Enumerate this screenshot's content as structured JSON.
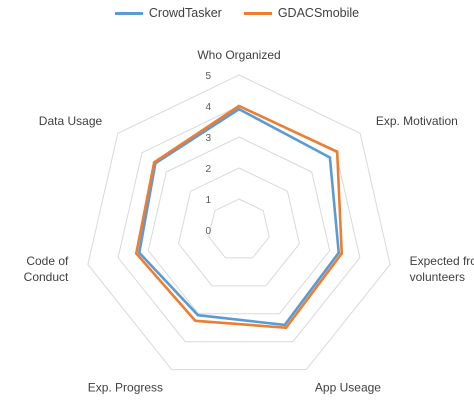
{
  "chart_data": {
    "type": "radar",
    "categories": [
      "Who Organized",
      "Exp. Motivation",
      "Expected from volunteers",
      "App Useage",
      "Exp. Progress",
      "Code of Conduct",
      "Data Usage"
    ],
    "category_lines": [
      [
        "Who Organized"
      ],
      [
        "Exp. Motivation"
      ],
      [
        "Expected from",
        "volunteers"
      ],
      [
        "App Useage"
      ],
      [
        "Exp. Progress"
      ],
      [
        "Code of",
        "Conduct"
      ],
      [
        "Data Usage"
      ]
    ],
    "series": [
      {
        "name": "CrowdTasker",
        "color": "#5B9BD5",
        "values": [
          3.9,
          3.75,
          3.3,
          3.4,
          3.05,
          3.3,
          3.45
        ]
      },
      {
        "name": "GDACSmobile",
        "color": "#ED7D31",
        "values": [
          4.0,
          4.05,
          3.4,
          3.5,
          3.25,
          3.4,
          3.5
        ]
      }
    ],
    "rlim": [
      0,
      5
    ],
    "ticks": [
      "0",
      "1",
      "2",
      "3",
      "4",
      "5"
    ],
    "grid": true,
    "legend_position": "top"
  }
}
